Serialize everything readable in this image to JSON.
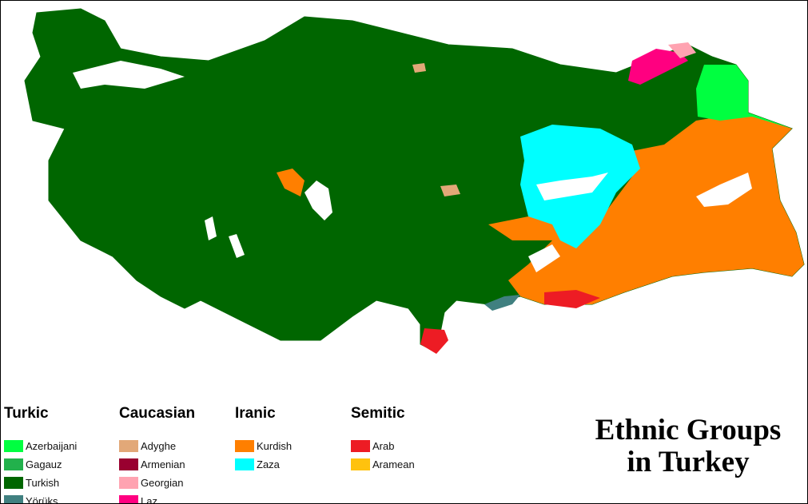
{
  "title_line1": "Ethnic Groups",
  "title_line2": "in Turkey",
  "legend": [
    {
      "heading": "Turkic",
      "items": [
        {
          "label": "Azerbaijani",
          "color": "#00ff40"
        },
        {
          "label": "Gagauz",
          "color": "#22b14c"
        },
        {
          "label": "Turkish",
          "color": "#006600"
        },
        {
          "label": "Yörüks",
          "color": "#408080"
        }
      ]
    },
    {
      "heading": "Caucasian",
      "items": [
        {
          "label": "Adyghe",
          "color": "#e2a878"
        },
        {
          "label": "Armenian",
          "color": "#990030"
        },
        {
          "label": "Georgian",
          "color": "#ffa3b1"
        },
        {
          "label": "Laz",
          "color": "#ff0080"
        }
      ]
    },
    {
      "heading": "Iranic",
      "items": [
        {
          "label": "Kurdish",
          "color": "#ff7f00"
        },
        {
          "label": "Zaza",
          "color": "#00ffff"
        }
      ]
    },
    {
      "heading": "Semitic",
      "items": [
        {
          "label": "Arab",
          "color": "#ed1c24"
        },
        {
          "label": "Aramean",
          "color": "#ffc20e"
        }
      ]
    }
  ]
}
